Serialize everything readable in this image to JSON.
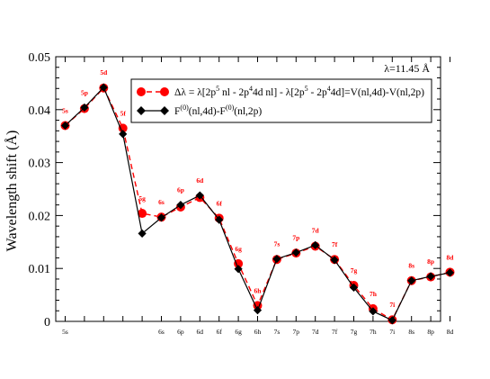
{
  "chart_data": {
    "type": "line",
    "ylabel": "Wavelength shift (Å)",
    "xlabel": "",
    "annotation": "λ=11.45 Å",
    "ylim": [
      0,
      0.05
    ],
    "yticks": [
      "0",
      "0.01",
      "0.02",
      "0.03",
      "0.04",
      "0.05"
    ],
    "x_labels_ticks": [
      "5s",
      "6s",
      "6p",
      "6d",
      "6f",
      "6g",
      "6h",
      "7s",
      "7p",
      "7d",
      "7f",
      "7g",
      "7h",
      "7i",
      "8s",
      "8p",
      "8d"
    ],
    "point_labels": [
      "5s",
      "5p",
      "5d",
      "5f",
      "5g",
      "6s",
      "6p",
      "6d",
      "6f",
      "6g",
      "6h",
      "7s",
      "7p",
      "7d",
      "7f",
      "7g",
      "7h",
      "7i",
      "8s",
      "8p",
      "8d"
    ],
    "series": [
      {
        "name": "Δλ = λ[2p5 nl - 2p44d nl] - λ[2p5 - 2p44d]=V(nl,4d)-V(nl,2p)",
        "color": "#ff0000",
        "marker": "circle",
        "dashed": true,
        "values": [
          0.037,
          0.0402,
          0.0441,
          0.0365,
          0.0204,
          0.0197,
          0.0216,
          0.0234,
          0.0195,
          0.0109,
          0.003,
          0.0117,
          0.0129,
          0.0142,
          0.0117,
          0.0068,
          0.0024,
          0.0003,
          0.0077,
          0.0084,
          0.0093
        ]
      },
      {
        "name": "F(0)(nl,4d)-F(0)(nl,2p)",
        "color": "#000000",
        "marker": "diamond",
        "dashed": false,
        "values": [
          0.037,
          0.0404,
          0.0442,
          0.0354,
          0.0166,
          0.0196,
          0.022,
          0.0238,
          0.0192,
          0.0099,
          0.0021,
          0.0118,
          0.013,
          0.0144,
          0.0116,
          0.0064,
          0.0019,
          0.0002,
          0.0077,
          0.0085,
          0.0092
        ]
      }
    ],
    "legend": {
      "position": "top-right",
      "entries": [
        {
          "pre": "Δλ = λ[2p",
          "s1": "5",
          "m1": " nl - 2p",
          "s2": "4",
          "m2": "4d nl] - λ[2p",
          "s3": "5",
          "m3": " - 2p",
          "s4": "4",
          "post": "4d]=V(nl,4d)-V(nl,2p)"
        },
        {
          "pre": "F",
          "s1": "(0)",
          "m1": "(nl,4d)-F",
          "s2": "(0)",
          "post": "(nl,2p)"
        }
      ]
    }
  }
}
